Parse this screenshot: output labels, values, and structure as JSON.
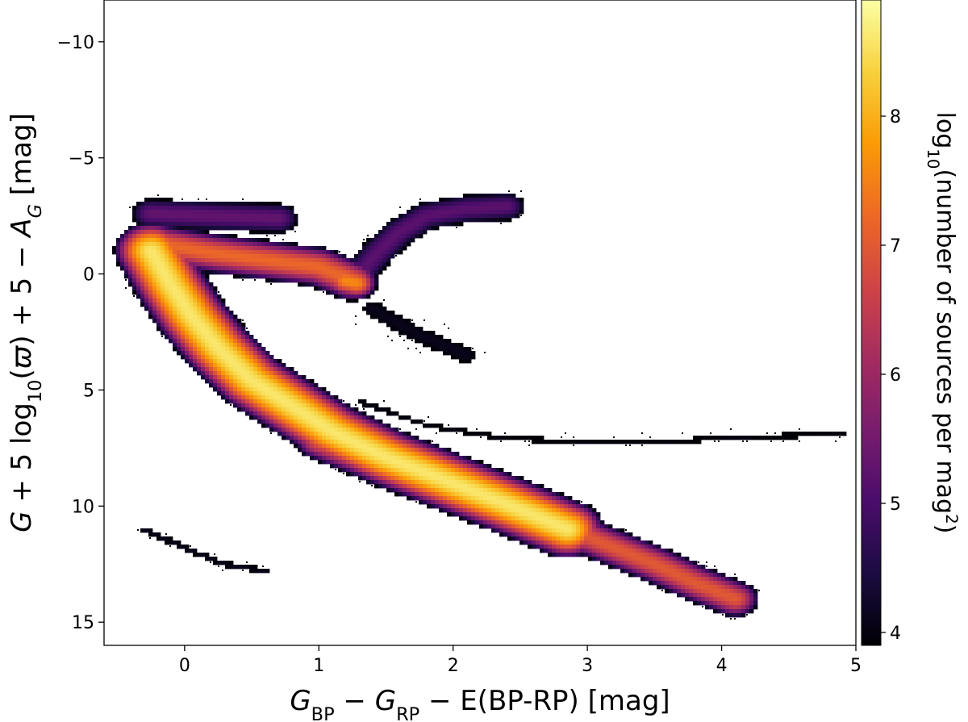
{
  "chart_data": {
    "type": "heatmap",
    "title": "",
    "xlabel": {
      "parts": [
        {
          "t": "G",
          "italic": true
        },
        {
          "t": "BP",
          "sub": true
        },
        {
          "t": " − "
        },
        {
          "t": "G",
          "italic": true
        },
        {
          "t": "RP",
          "sub": true
        },
        {
          "t": " − E(BP-RP) [mag]"
        }
      ]
    },
    "ylabel": {
      "parts": [
        {
          "t": "G",
          "italic": true
        },
        {
          "t": " + 5 log"
        },
        {
          "t": "10",
          "sub": true
        },
        {
          "t": "("
        },
        {
          "t": "ϖ",
          "italic": true
        },
        {
          "t": ") + 5 − "
        },
        {
          "t": "A",
          "italic": true
        },
        {
          "t": "G",
          "sub": true,
          "italic": true
        },
        {
          "t": " [mag]"
        }
      ]
    },
    "colorbar_label": {
      "parts": [
        {
          "t": "log"
        },
        {
          "t": "10",
          "sub": true
        },
        {
          "t": "(number of sources per mag"
        },
        {
          "t": "2",
          "sup": true
        },
        {
          "t": ")"
        }
      ]
    },
    "xlim": [
      -0.6,
      5.0
    ],
    "ylim": [
      16.0,
      -11.8
    ],
    "y_inverted": true,
    "xticks": [
      0,
      1,
      2,
      3,
      4,
      5
    ],
    "xtick_labels": [
      "0",
      "1",
      "2",
      "3",
      "4",
      "5"
    ],
    "yticks": [
      -10,
      -5,
      0,
      5,
      10,
      15
    ],
    "ytick_labels": [
      "−10",
      "−5",
      "0",
      "5",
      "10",
      "15"
    ],
    "colorbar": {
      "range": [
        3.9,
        8.9
      ],
      "ticks": [
        4,
        5,
        6,
        7,
        8
      ],
      "tick_labels": [
        "4",
        "5",
        "6",
        "7",
        "8"
      ],
      "colormap": "inferno",
      "stops": [
        "#000004",
        "#1b0c41",
        "#4a0c6b",
        "#781c6d",
        "#a52c60",
        "#cf4446",
        "#ed6925",
        "#fb9b06",
        "#f7d13d",
        "#fcffa4"
      ]
    },
    "features": [
      {
        "name": "upper main sequence",
        "points": [
          [
            -0.25,
            -1.0
          ],
          [
            -0.1,
            0.5
          ],
          [
            0.05,
            1.8
          ],
          [
            0.25,
            3.2
          ],
          [
            0.5,
            4.6
          ],
          [
            0.8,
            5.7
          ],
          [
            1.1,
            6.8
          ],
          [
            1.5,
            7.9
          ],
          [
            1.9,
            8.8
          ],
          [
            2.3,
            9.7
          ],
          [
            2.6,
            10.4
          ],
          [
            2.85,
            11.0
          ]
        ],
        "spread": 0.55,
        "peak": 8.6,
        "falloff": 0.55
      },
      {
        "name": "lower main sequence",
        "points": [
          [
            1.0,
            7.2
          ],
          [
            1.5,
            8.4
          ],
          [
            2.0,
            9.3
          ],
          [
            2.5,
            10.3
          ],
          [
            2.9,
            11.1
          ],
          [
            3.2,
            11.8
          ],
          [
            3.5,
            12.5
          ],
          [
            3.8,
            13.3
          ],
          [
            4.1,
            14.0
          ]
        ],
        "spread": 0.45,
        "peak": 7.0,
        "falloff": 0.65
      },
      {
        "name": "turn-off and subgiant branch",
        "points": [
          [
            -0.2,
            -1.3
          ],
          [
            0.2,
            -0.9
          ],
          [
            0.6,
            -0.6
          ],
          [
            1.0,
            -0.3
          ],
          [
            1.25,
            0.3
          ]
        ],
        "spread": 0.5,
        "peak": 7.2,
        "falloff": 0.7
      },
      {
        "name": "red clump",
        "points": [
          [
            1.2,
            0.3
          ],
          [
            1.28,
            0.4
          ]
        ],
        "spread": 0.4,
        "peak": 7.6,
        "falloff": 0.8
      },
      {
        "name": "bright blue stars",
        "points": [
          [
            -0.25,
            -2.6
          ],
          [
            0.2,
            -2.5
          ],
          [
            0.7,
            -2.4
          ]
        ],
        "spread": 0.6,
        "peak": 5.3,
        "falloff": 0.75
      },
      {
        "name": "red giant branch",
        "points": [
          [
            1.3,
            0.0
          ],
          [
            1.45,
            -1.0
          ],
          [
            1.6,
            -1.8
          ],
          [
            1.8,
            -2.5
          ],
          [
            2.1,
            -2.8
          ],
          [
            2.4,
            -2.9
          ]
        ],
        "spread": 0.55,
        "peak": 5.2,
        "falloff": 0.7
      },
      {
        "name": "sparse giant region",
        "points": [
          [
            1.4,
            1.5
          ],
          [
            1.7,
            2.5
          ],
          [
            2.1,
            3.5
          ]
        ],
        "spread": 0.95,
        "peak": 4.1,
        "falloff": 1.0
      },
      {
        "name": "binary sequence band",
        "points": [
          [
            1.3,
            5.5
          ],
          [
            1.8,
            6.5
          ],
          [
            2.4,
            7.1
          ],
          [
            3.0,
            7.2
          ],
          [
            3.6,
            7.2
          ],
          [
            4.3,
            7.0
          ],
          [
            4.9,
            6.9
          ]
        ],
        "spread": 0.4,
        "peak": 4.0,
        "falloff": 1.2
      },
      {
        "name": "white dwarf sequence",
        "points": [
          [
            -0.3,
            11.0
          ],
          [
            0.0,
            11.8
          ],
          [
            0.3,
            12.5
          ],
          [
            0.6,
            12.8
          ]
        ],
        "spread": 0.3,
        "peak": 4.1,
        "falloff": 1.1
      }
    ],
    "grid": false,
    "legend": "none"
  }
}
